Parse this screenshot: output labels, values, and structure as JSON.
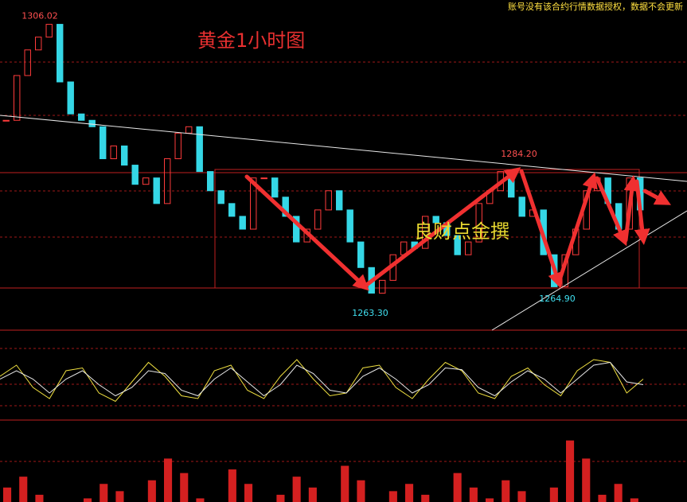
{
  "notice": "账号没有该合约行情数据授权，数据不会更新",
  "chart_data": {
    "type": "candlestick",
    "title": "黄金1小时图",
    "watermark": "良财点金撰",
    "closes": [
      1291,
      1298,
      1302,
      1304,
      1306,
      1297,
      1292,
      1291,
      1290,
      1285,
      1287,
      1284,
      1281,
      1282,
      1278,
      1285,
      1289,
      1290,
      1283,
      1280,
      1278,
      1276,
      1274,
      1282,
      1282,
      1279,
      1276,
      1272,
      1274,
      1277,
      1280,
      1277,
      1272,
      1268,
      1264,
      1266,
      1270,
      1272,
      1271,
      1276,
      1275,
      1273,
      1270,
      1272,
      1278,
      1280,
      1283,
      1279,
      1276,
      1277,
      1270,
      1265,
      1270,
      1274,
      1280,
      1282,
      1278,
      1274,
      1282,
      1277
    ],
    "up_color": "#ff3b3b",
    "down_color": "#35d7e6",
    "annotations": [
      1306.02,
      {
        "value": 1284.2,
        "label": "1284.20"
      },
      {
        "value": 1263.3,
        "label": "1263.30"
      },
      {
        "value": 1264.9,
        "label": "1264.90"
      }
    ],
    "ylim": [
      1261.2,
      1309.8
    ],
    "oscillator": {
      "k": [
        60,
        80,
        40,
        20,
        70,
        75,
        30,
        15,
        50,
        85,
        60,
        25,
        20,
        70,
        80,
        35,
        20,
        60,
        90,
        55,
        25,
        30,
        75,
        80,
        40,
        20,
        55,
        85,
        70,
        30,
        20,
        60,
        75,
        45,
        25,
        70,
        90,
        85,
        30,
        55
      ],
      "d": [
        55,
        70,
        55,
        30,
        55,
        70,
        45,
        25,
        40,
        70,
        65,
        35,
        25,
        55,
        75,
        50,
        25,
        45,
        80,
        65,
        35,
        30,
        60,
        75,
        55,
        30,
        45,
        75,
        72,
        40,
        25,
        50,
        70,
        55,
        30,
        55,
        80,
        85,
        50,
        45
      ],
      "ylim": [
        0,
        100
      ]
    },
    "histogram": {
      "values": [
        20,
        35,
        10,
        0,
        0,
        5,
        25,
        15,
        0,
        30,
        60,
        40,
        5,
        0,
        45,
        25,
        0,
        10,
        35,
        20,
        0,
        50,
        30,
        0,
        15,
        25,
        10,
        0,
        40,
        20,
        5,
        30,
        15,
        0,
        20,
        85,
        60,
        10,
        25,
        5
      ],
      "ylim": [
        0,
        100
      ],
      "color": "#d42020"
    }
  }
}
